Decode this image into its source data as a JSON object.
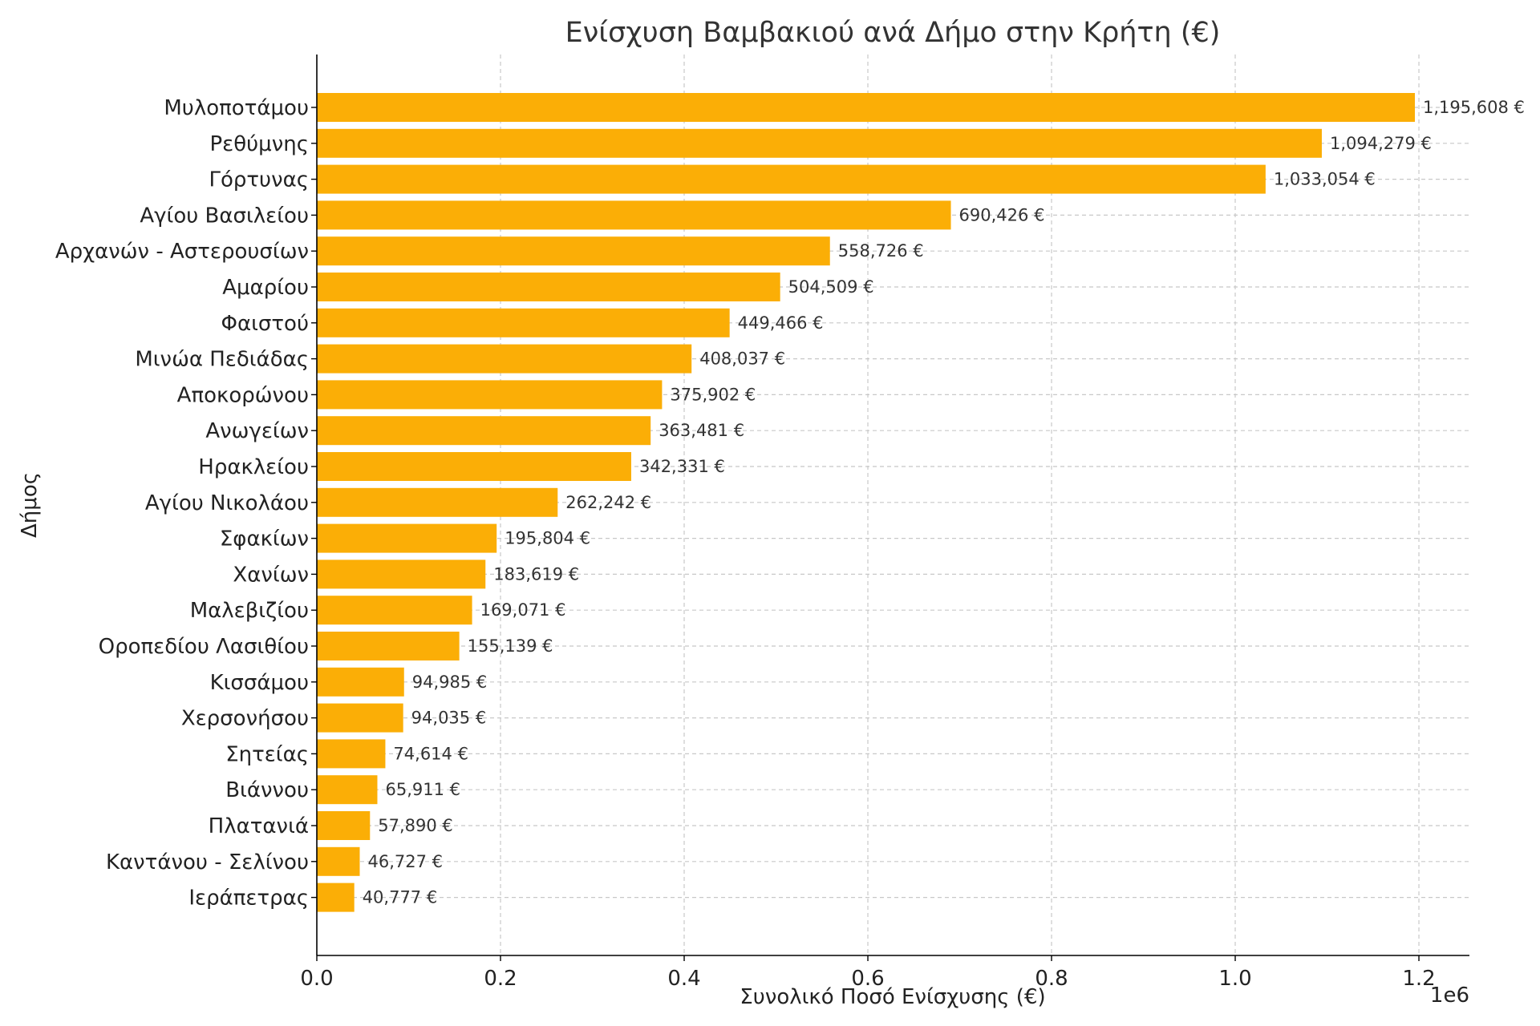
{
  "chart_data": {
    "type": "bar",
    "orientation": "horizontal",
    "title": "Ενίσχυση Βαμβακιού ανά Δήμο στην Κρήτη (€)",
    "xlabel": "Συνολικό Ποσό Ενίσχυσης (€)",
    "ylabel": "Δήμος",
    "x_scale_label": "1e6",
    "x_scale": 1000000,
    "xlim": [
      0,
      1255000
    ],
    "x_ticks": [
      0,
      200000,
      400000,
      600000,
      800000,
      1000000,
      1200000
    ],
    "x_tick_labels": [
      "0.0",
      "0.2",
      "0.4",
      "0.6",
      "0.8",
      "1.0",
      "1.2"
    ],
    "grid": true,
    "bar_color": "#FBAE06",
    "categories": [
      "Μυλοποτάμου",
      "Ρεθύμνης",
      "Γόρτυνας",
      "Αγίου Βασιλείου",
      "Αρχανών - Αστερουσίων",
      "Αμαρίου",
      "Φαιστού",
      "Μινώα Πεδιάδας",
      "Αποκορώνου",
      "Ανωγείων",
      "Ηρακλείου",
      "Αγίου Νικολάου",
      "Σφακίων",
      "Χανίων",
      "Μαλεβιζίου",
      "Οροπεδίου Λασιθίου",
      "Κισσάμου",
      "Χερσονήσου",
      "Σητείας",
      "Βιάννου",
      "Πλατανιά",
      "Καντάνου - Σελίνου",
      "Ιεράπετρας"
    ],
    "values": [
      1195608,
      1094279,
      1033054,
      690426,
      558726,
      504509,
      449466,
      408037,
      375902,
      363481,
      342331,
      262242,
      195804,
      183619,
      169071,
      155139,
      94985,
      94035,
      74614,
      65911,
      57890,
      46727,
      40777
    ],
    "value_labels": [
      "1,195,608 €",
      "1,094,279 €",
      "1,033,054 €",
      "690,426 €",
      "558,726 €",
      "504,509 €",
      "449,466 €",
      "408,037 €",
      "375,902 €",
      "363,481 €",
      "342,331 €",
      "262,242 €",
      "195,804 €",
      "183,619 €",
      "169,071 €",
      "155,139 €",
      "94,985 €",
      "94,035 €",
      "74,614 €",
      "65,911 €",
      "57,890 €",
      "46,727 €",
      "40,777 €"
    ]
  }
}
